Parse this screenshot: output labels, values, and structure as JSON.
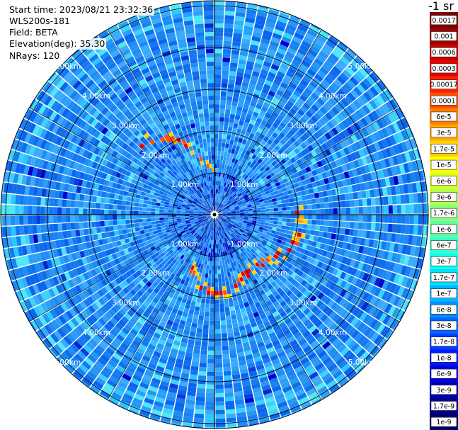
{
  "info": {
    "start_time": "Start time: 2023/08/21 23:32:36",
    "instrument": "WLS200s-181",
    "field": "Field: BETA",
    "elevation": "Elevation(deg): 35.30",
    "nrays": "NRays: 120"
  },
  "scan": {
    "rays": 120
  },
  "range_rings": [
    {
      "label": "1.00km",
      "km": 1
    },
    {
      "label": "2.00km",
      "km": 2
    },
    {
      "label": "3.00km",
      "km": 3
    },
    {
      "label": "4.00km",
      "km": 4
    },
    {
      "label": "5.00km",
      "km": 5
    }
  ],
  "colorbar": {
    "unit_label": "-1 sr",
    "ticks": [
      "0.0017",
      "0.001",
      "0.0006",
      "0.0003",
      "0.00017",
      "0.0001",
      "6e-5",
      "3e-5",
      "1.7e-5",
      "1e-5",
      "6e-6",
      "3e-6",
      "1.7e-6",
      "1e-6",
      "6e-7",
      "3e-7",
      "1.7e-7",
      "1e-7",
      "6e-8",
      "3e-8",
      "1.7e-8",
      "1e-8",
      "6e-9",
      "3e-9",
      "1.7e-9",
      "1e-9"
    ],
    "colors": [
      "#800000",
      "#a00000",
      "#c80000",
      "#e80000",
      "#ff2000",
      "#ff5000",
      "#ff8000",
      "#ffa800",
      "#ffd000",
      "#ffff00",
      "#d8ff28",
      "#b0ff50",
      "#88ff78",
      "#60ffa0",
      "#38ffc8",
      "#10ffee",
      "#00e0ff",
      "#00b8ff",
      "#0090ff",
      "#0068ff",
      "#0040ff",
      "#0018ff",
      "#0000e0",
      "#0000b8",
      "#000090",
      "#000068"
    ]
  }
}
